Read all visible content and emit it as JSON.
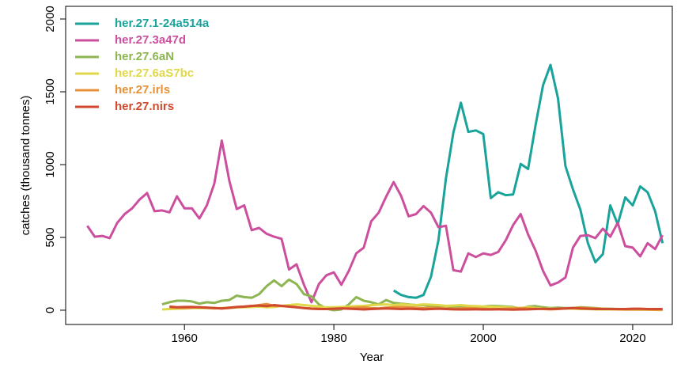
{
  "chart_data": {
    "type": "line",
    "x_label": "Year",
    "y_label": "catches (thousand tonnes)",
    "x": [
      1947,
      1948,
      1949,
      1950,
      1951,
      1952,
      1953,
      1954,
      1955,
      1956,
      1957,
      1958,
      1959,
      1960,
      1961,
      1962,
      1963,
      1964,
      1965,
      1966,
      1967,
      1968,
      1969,
      1970,
      1971,
      1972,
      1973,
      1974,
      1975,
      1976,
      1977,
      1978,
      1979,
      1980,
      1981,
      1982,
      1983,
      1984,
      1985,
      1986,
      1987,
      1988,
      1989,
      1990,
      1991,
      1992,
      1993,
      1994,
      1995,
      1996,
      1997,
      1998,
      1999,
      2000,
      2001,
      2002,
      2003,
      2004,
      2005,
      2006,
      2007,
      2008,
      2009,
      2010,
      2011,
      2012,
      2013,
      2014,
      2015,
      2016,
      2017,
      2018,
      2019,
      2020,
      2021,
      2022,
      2023,
      2024
    ],
    "xlim": [
      1944.1,
      2025.3
    ],
    "xticks": [
      1960,
      1980,
      2000,
      2020
    ],
    "ylim": [
      -98,
      2087
    ],
    "yticks": [
      0,
      500,
      1000,
      1500,
      2000
    ],
    "grid": false,
    "legend": "top-left",
    "series": [
      {
        "name": "her.27.1-24a514a",
        "color": "#1aa39a",
        "values": [
          null,
          null,
          null,
          null,
          null,
          null,
          null,
          null,
          null,
          null,
          null,
          null,
          null,
          null,
          null,
          null,
          null,
          null,
          null,
          null,
          null,
          null,
          null,
          null,
          null,
          null,
          null,
          null,
          null,
          null,
          null,
          null,
          null,
          null,
          null,
          null,
          null,
          null,
          null,
          null,
          null,
          135,
          105,
          90,
          85,
          105,
          230,
          480,
          905,
          1220,
          1425,
          1225,
          1235,
          1210,
          770,
          810,
          790,
          795,
          1005,
          970,
          1270,
          1545,
          1685,
          1455,
          990,
          830,
          690,
          460,
          330,
          385,
          720,
          590,
          775,
          720,
          850,
          810,
          680,
          460
        ]
      },
      {
        "name": "her.27.3a47d",
        "color": "#cc4f9e",
        "values": [
          580,
          505,
          510,
          495,
          600,
          660,
          700,
          760,
          805,
          680,
          685,
          672,
          782,
          700,
          700,
          630,
          720,
          870,
          1165,
          890,
          695,
          720,
          550,
          565,
          525,
          505,
          490,
          280,
          315,
          175,
          55,
          180,
          240,
          260,
          175,
          270,
          390,
          430,
          610,
          670,
          780,
          880,
          785,
          645,
          660,
          715,
          670,
          570,
          580,
          275,
          265,
          390,
          365,
          390,
          380,
          400,
          480,
          585,
          660,
          520,
          410,
          270,
          170,
          190,
          225,
          430,
          510,
          515,
          495,
          560,
          505,
          600,
          440,
          430,
          370,
          460,
          420,
          515
        ]
      },
      {
        "name": "her.27.6aN",
        "color": "#8db552",
        "values": [
          null,
          null,
          null,
          null,
          null,
          null,
          null,
          null,
          null,
          null,
          40,
          55,
          65,
          65,
          60,
          45,
          55,
          50,
          65,
          70,
          100,
          90,
          85,
          110,
          165,
          205,
          165,
          210,
          180,
          110,
          95,
          40,
          10,
          0,
          5,
          40,
          90,
          65,
          55,
          40,
          70,
          50,
          45,
          40,
          35,
          35,
          30,
          30,
          28,
          25,
          25,
          25,
          22,
          25,
          30,
          28,
          25,
          22,
          10,
          25,
          28,
          20,
          15,
          18,
          15,
          15,
          20,
          18,
          15,
          10,
          10,
          8,
          8,
          8,
          6,
          6,
          5,
          5
        ]
      },
      {
        "name": "her.27.6aS7bc",
        "color": "#e0d84a",
        "values": [
          null,
          null,
          null,
          null,
          null,
          null,
          null,
          null,
          null,
          null,
          5,
          8,
          10,
          12,
          15,
          15,
          15,
          12,
          15,
          18,
          20,
          20,
          22,
          25,
          20,
          22,
          30,
          35,
          40,
          35,
          30,
          25,
          20,
          20,
          22,
          25,
          28,
          30,
          35,
          38,
          40,
          35,
          40,
          38,
          35,
          40,
          38,
          35,
          30,
          32,
          35,
          30,
          28,
          25,
          25,
          22,
          20,
          18,
          15,
          20,
          15,
          12,
          10,
          10,
          12,
          10,
          8,
          8,
          6,
          5,
          5,
          5,
          4,
          4,
          3,
          3,
          2,
          2
        ]
      },
      {
        "name": "her.27.irls",
        "color": "#e69138",
        "values": [
          null,
          null,
          null,
          null,
          null,
          null,
          null,
          null,
          null,
          null,
          null,
          20,
          18,
          15,
          18,
          20,
          18,
          15,
          12,
          15,
          20,
          25,
          28,
          35,
          42,
          30,
          28,
          25,
          20,
          15,
          12,
          10,
          8,
          10,
          12,
          15,
          18,
          20,
          15,
          12,
          18,
          20,
          22,
          20,
          18,
          15,
          18,
          15,
          12,
          10,
          12,
          15,
          12,
          10,
          8,
          8,
          10,
          12,
          15,
          12,
          10,
          8,
          6,
          8,
          12,
          15,
          18,
          15,
          12,
          10,
          8,
          6,
          5,
          5,
          6,
          5,
          4,
          4
        ]
      },
      {
        "name": "her.27.nirs",
        "color": "#cf4a2e",
        "values": [
          null,
          null,
          null,
          null,
          null,
          null,
          null,
          null,
          null,
          null,
          null,
          25,
          20,
          22,
          22,
          20,
          18,
          15,
          12,
          18,
          22,
          25,
          30,
          32,
          28,
          35,
          30,
          25,
          20,
          15,
          10,
          8,
          8,
          10,
          12,
          10,
          8,
          5,
          8,
          10,
          12,
          10,
          8,
          10,
          8,
          6,
          8,
          10,
          8,
          6,
          5,
          5,
          6,
          5,
          5,
          6,
          5,
          4,
          5,
          6,
          8,
          10,
          8,
          10,
          12,
          15,
          12,
          10,
          8,
          8,
          8,
          8,
          8,
          10,
          10,
          8,
          8,
          8
        ]
      }
    ]
  }
}
